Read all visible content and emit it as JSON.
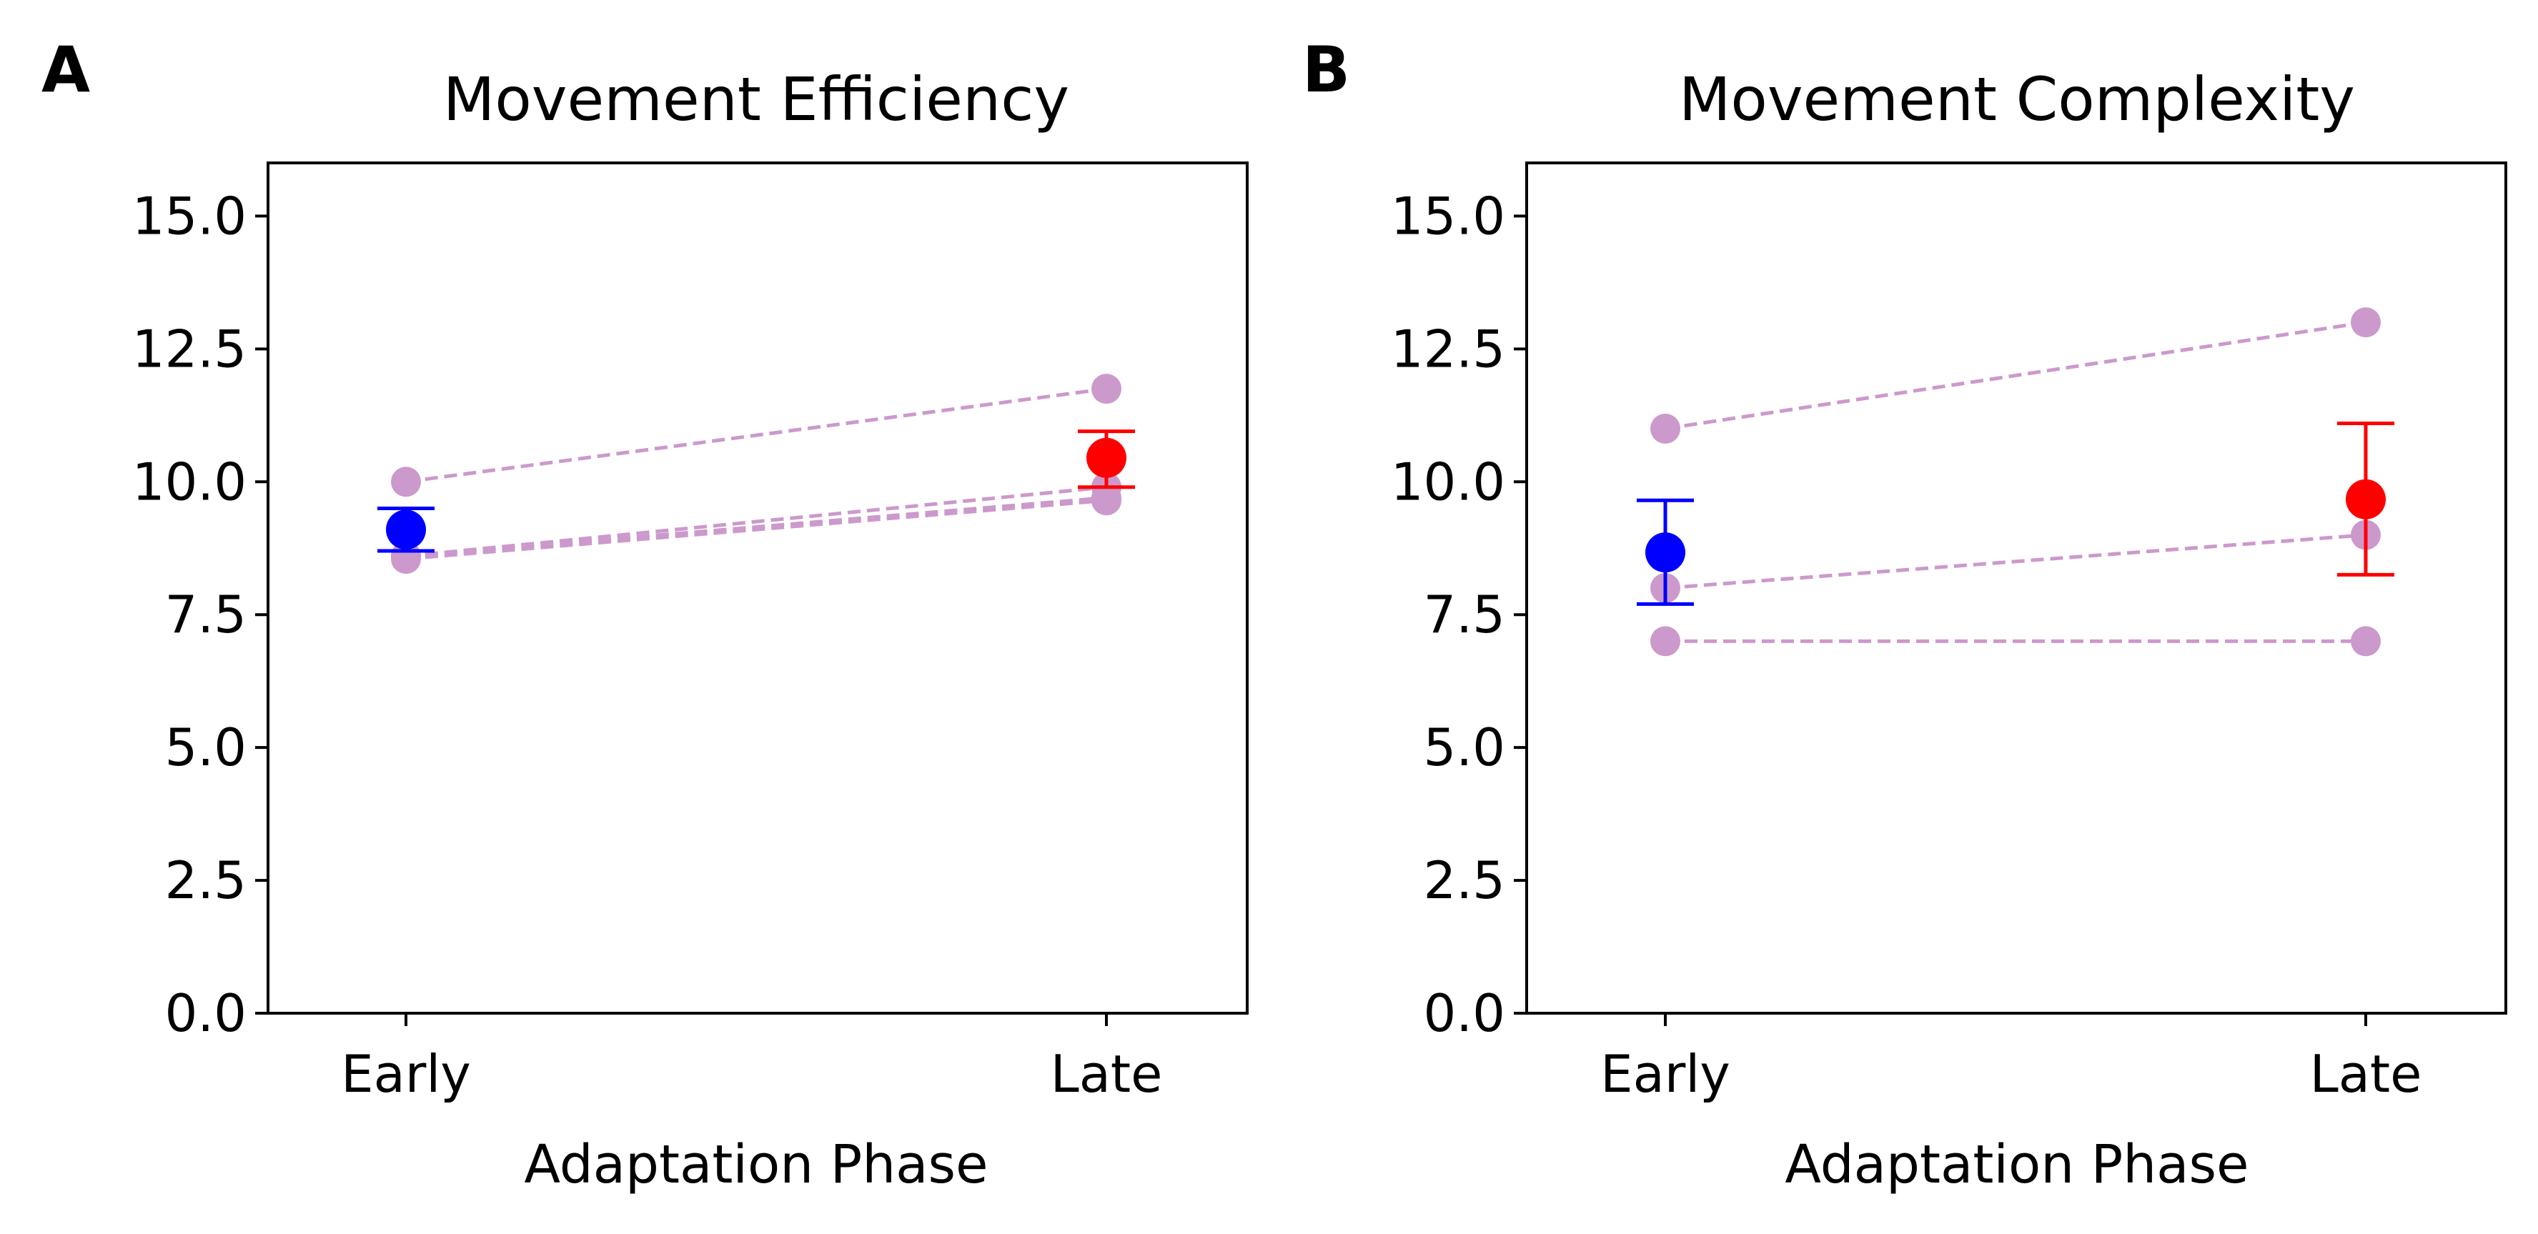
{
  "figure": {
    "panels": [
      {
        "letter": "A"
      },
      {
        "letter": "B"
      }
    ]
  },
  "chart_data": [
    {
      "type": "scatter",
      "title": "Movement Efficiency",
      "xlabel": "Adaptation Phase",
      "ylabel": "",
      "categories": [
        "Early",
        "Late"
      ],
      "ylim": [
        0,
        16
      ],
      "yticks": [
        "0.0",
        "2.5",
        "5.0",
        "7.5",
        "10.0",
        "12.5",
        "15.0"
      ],
      "grid": false,
      "individuals": [
        {
          "values": [
            10.0,
            11.75
          ]
        },
        {
          "values": [
            8.6,
            9.9
          ]
        },
        {
          "values": [
            8.6,
            9.7
          ]
        },
        {
          "values": [
            8.55,
            9.65
          ]
        }
      ],
      "means": [
        {
          "category": "Early",
          "mean": 9.1,
          "err_low": 8.7,
          "err_high": 9.5,
          "color": "#0000ff"
        },
        {
          "category": "Late",
          "mean": 10.45,
          "err_low": 9.9,
          "err_high": 10.95,
          "color": "#ff0000"
        }
      ],
      "individual_color": "#cc99cc"
    },
    {
      "type": "scatter",
      "title": "Movement Complexity",
      "xlabel": "Adaptation Phase",
      "ylabel": "",
      "categories": [
        "Early",
        "Late"
      ],
      "ylim": [
        0,
        16
      ],
      "yticks": [
        "0.0",
        "2.5",
        "5.0",
        "7.5",
        "10.0",
        "12.5",
        "15.0"
      ],
      "grid": false,
      "individuals": [
        {
          "values": [
            11.0,
            13.0
          ]
        },
        {
          "values": [
            8.0,
            9.0
          ]
        },
        {
          "values": [
            7.0,
            7.0
          ]
        }
      ],
      "means": [
        {
          "category": "Early",
          "mean": 8.67,
          "err_low": 7.7,
          "err_high": 9.65,
          "color": "#0000ff"
        },
        {
          "category": "Late",
          "mean": 9.67,
          "err_low": 8.25,
          "err_high": 11.1,
          "color": "#ff0000"
        }
      ],
      "individual_color": "#cc99cc"
    }
  ]
}
